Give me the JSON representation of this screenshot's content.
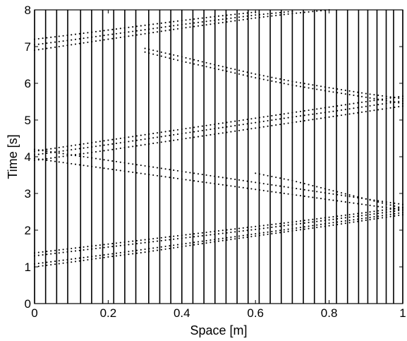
{
  "chart_data": {
    "type": "scatter",
    "title": "",
    "xlabel": "Space [m]",
    "ylabel": "Time [s]",
    "xlim": [
      0,
      1
    ],
    "ylim": [
      0,
      8
    ],
    "grid": false,
    "legend": "none",
    "x_ticks": [
      "0",
      "0.2",
      "0.4",
      "0.6",
      "0.8",
      "1"
    ],
    "y_ticks": [
      "0",
      "1",
      "2",
      "3",
      "4",
      "5",
      "6",
      "7",
      "8"
    ],
    "marker_color": "#000000",
    "vertical_line_positions_x": [
      0.0,
      0.03,
      0.06,
      0.09,
      0.125,
      0.155,
      0.185,
      0.215,
      0.245,
      0.275,
      0.31,
      0.34,
      0.37,
      0.4,
      0.43,
      0.46,
      0.49,
      0.52,
      0.55,
      0.58,
      0.61,
      0.64,
      0.67,
      0.7,
      0.73,
      0.76,
      0.79,
      0.82,
      0.85,
      0.88,
      0.905,
      0.93,
      0.955,
      0.975,
      1.0
    ],
    "series": [
      {
        "points": [
          [
            0.0,
            1.0
          ],
          [
            0.1,
            1.13
          ],
          [
            0.2,
            1.27
          ],
          [
            0.3,
            1.4
          ],
          [
            0.4,
            1.55
          ],
          [
            0.5,
            1.7
          ],
          [
            0.6,
            1.84
          ],
          [
            0.7,
            1.98
          ],
          [
            0.8,
            2.12
          ],
          [
            0.9,
            2.27
          ],
          [
            1.0,
            2.42
          ]
        ]
      },
      {
        "points": [
          [
            0.0,
            1.08
          ],
          [
            0.1,
            1.21
          ],
          [
            0.2,
            1.34
          ],
          [
            0.3,
            1.48
          ],
          [
            0.4,
            1.62
          ],
          [
            0.5,
            1.76
          ],
          [
            0.6,
            1.9
          ],
          [
            0.7,
            2.04
          ],
          [
            0.8,
            2.19
          ],
          [
            0.9,
            2.33
          ],
          [
            1.0,
            2.48
          ]
        ]
      },
      {
        "points": [
          [
            0.0,
            1.3
          ],
          [
            0.1,
            1.42
          ],
          [
            0.2,
            1.54
          ],
          [
            0.3,
            1.66
          ],
          [
            0.4,
            1.78
          ],
          [
            0.5,
            1.9
          ],
          [
            0.6,
            2.02
          ],
          [
            0.7,
            2.15
          ],
          [
            0.8,
            2.28
          ],
          [
            0.9,
            2.41
          ],
          [
            1.0,
            2.55
          ]
        ]
      },
      {
        "points": [
          [
            0.0,
            1.38
          ],
          [
            0.1,
            1.5
          ],
          [
            0.2,
            1.62
          ],
          [
            0.3,
            1.74
          ],
          [
            0.4,
            1.86
          ],
          [
            0.5,
            1.98
          ],
          [
            0.6,
            2.1
          ],
          [
            0.7,
            2.22
          ],
          [
            0.8,
            2.35
          ],
          [
            0.9,
            2.48
          ],
          [
            1.0,
            2.62
          ]
        ]
      },
      {
        "points": [
          [
            0.6,
            3.55
          ],
          [
            0.7,
            3.35
          ],
          [
            0.8,
            3.1
          ],
          [
            0.9,
            2.85
          ],
          [
            1.0,
            2.6
          ]
        ]
      },
      {
        "points": [
          [
            0.0,
            3.95
          ],
          [
            0.1,
            3.81
          ],
          [
            0.2,
            3.67
          ],
          [
            0.3,
            3.53
          ],
          [
            0.4,
            3.39
          ],
          [
            0.5,
            3.25
          ],
          [
            0.6,
            3.11
          ],
          [
            0.7,
            2.97
          ],
          [
            0.8,
            2.83
          ],
          [
            0.9,
            2.69
          ],
          [
            1.0,
            2.55
          ]
        ]
      },
      {
        "points": [
          [
            0.0,
            4.2
          ],
          [
            0.1,
            4.05
          ],
          [
            0.2,
            3.9
          ],
          [
            0.3,
            3.75
          ],
          [
            0.4,
            3.6
          ],
          [
            0.5,
            3.45
          ],
          [
            0.6,
            3.3
          ],
          [
            0.7,
            3.15
          ],
          [
            0.8,
            3.0
          ],
          [
            0.9,
            2.85
          ],
          [
            1.0,
            2.7
          ]
        ]
      },
      {
        "points": [
          [
            0.0,
            3.9
          ],
          [
            0.1,
            4.04
          ],
          [
            0.2,
            4.18
          ],
          [
            0.3,
            4.33
          ],
          [
            0.4,
            4.48
          ],
          [
            0.5,
            4.63
          ],
          [
            0.6,
            4.78
          ],
          [
            0.7,
            4.93
          ],
          [
            0.8,
            5.08
          ],
          [
            0.9,
            5.23
          ],
          [
            1.0,
            5.38
          ]
        ]
      },
      {
        "points": [
          [
            0.0,
            4.05
          ],
          [
            0.1,
            4.19
          ],
          [
            0.2,
            4.33
          ],
          [
            0.3,
            4.48
          ],
          [
            0.4,
            4.63
          ],
          [
            0.5,
            4.78
          ],
          [
            0.6,
            4.93
          ],
          [
            0.7,
            5.08
          ],
          [
            0.8,
            5.22
          ],
          [
            0.9,
            5.37
          ],
          [
            1.0,
            5.52
          ]
        ]
      },
      {
        "points": [
          [
            0.0,
            4.15
          ],
          [
            0.1,
            4.3
          ],
          [
            0.2,
            4.45
          ],
          [
            0.3,
            4.6
          ],
          [
            0.4,
            4.75
          ],
          [
            0.5,
            4.9
          ],
          [
            0.6,
            5.05
          ],
          [
            0.7,
            5.2
          ],
          [
            0.8,
            5.35
          ],
          [
            0.9,
            5.5
          ],
          [
            1.0,
            5.65
          ]
        ]
      },
      {
        "points": [
          [
            0.3,
            6.85
          ],
          [
            0.4,
            6.6
          ],
          [
            0.5,
            6.38
          ],
          [
            0.6,
            6.15
          ],
          [
            0.7,
            5.95
          ],
          [
            0.8,
            5.78
          ],
          [
            0.9,
            5.62
          ],
          [
            1.0,
            5.45
          ]
        ]
      },
      {
        "points": [
          [
            0.3,
            6.95
          ],
          [
            0.4,
            6.72
          ],
          [
            0.5,
            6.48
          ],
          [
            0.6,
            6.25
          ],
          [
            0.7,
            6.05
          ],
          [
            0.8,
            5.88
          ],
          [
            0.9,
            5.72
          ],
          [
            1.0,
            5.58
          ]
        ]
      },
      {
        "points": [
          [
            0.0,
            6.9
          ],
          [
            0.1,
            7.05
          ],
          [
            0.2,
            7.2
          ],
          [
            0.3,
            7.35
          ],
          [
            0.4,
            7.5
          ],
          [
            0.5,
            7.64
          ],
          [
            0.6,
            7.78
          ],
          [
            0.7,
            7.9
          ],
          [
            0.8,
            8.0
          ]
        ]
      },
      {
        "points": [
          [
            0.0,
            7.05
          ],
          [
            0.1,
            7.18
          ],
          [
            0.2,
            7.32
          ],
          [
            0.3,
            7.46
          ],
          [
            0.4,
            7.6
          ],
          [
            0.5,
            7.73
          ],
          [
            0.6,
            7.86
          ],
          [
            0.7,
            7.96
          ]
        ]
      },
      {
        "points": [
          [
            0.0,
            7.2
          ],
          [
            0.1,
            7.32
          ],
          [
            0.2,
            7.45
          ],
          [
            0.3,
            7.58
          ],
          [
            0.4,
            7.71
          ],
          [
            0.5,
            7.83
          ],
          [
            0.6,
            7.94
          ]
        ]
      }
    ]
  }
}
